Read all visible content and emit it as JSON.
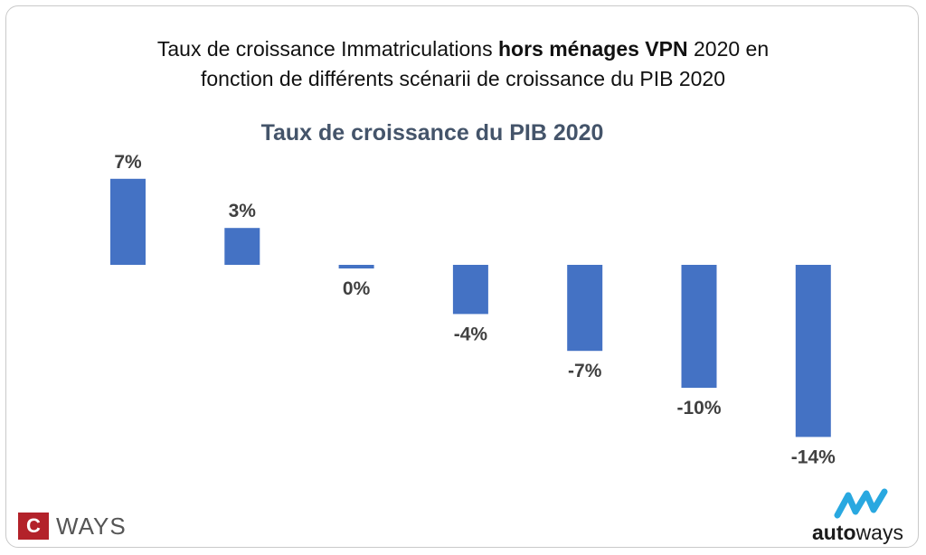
{
  "header": {
    "title_line1_pre": "Taux de croissance Immatriculations ",
    "title_line1_bold": "hors ménages VPN",
    "title_line1_post": " 2020 en",
    "title_line2": "fonction de différents scénarii de croissance du PIB 2020"
  },
  "chart_data": {
    "type": "bar",
    "title": "Taux de croissance du PIB 2020",
    "categories": [],
    "values": [
      7,
      3,
      0,
      -4,
      -7,
      -10,
      -14
    ],
    "labels": [
      "7%",
      "3%",
      "0%",
      "-4%",
      "-7%",
      "-10%",
      "-14%"
    ],
    "unit": "%",
    "grid": false,
    "legend": false
  },
  "colors": {
    "bar": "#4472c4",
    "chart_title": "#44546a",
    "label": "#404040",
    "brand_red": "#b3222a",
    "brand_blue": "#29a8e0"
  },
  "branding": {
    "left_letter": "C",
    "left_text": "WAYS",
    "right_text_a": "auto",
    "right_text_b": "ways"
  }
}
